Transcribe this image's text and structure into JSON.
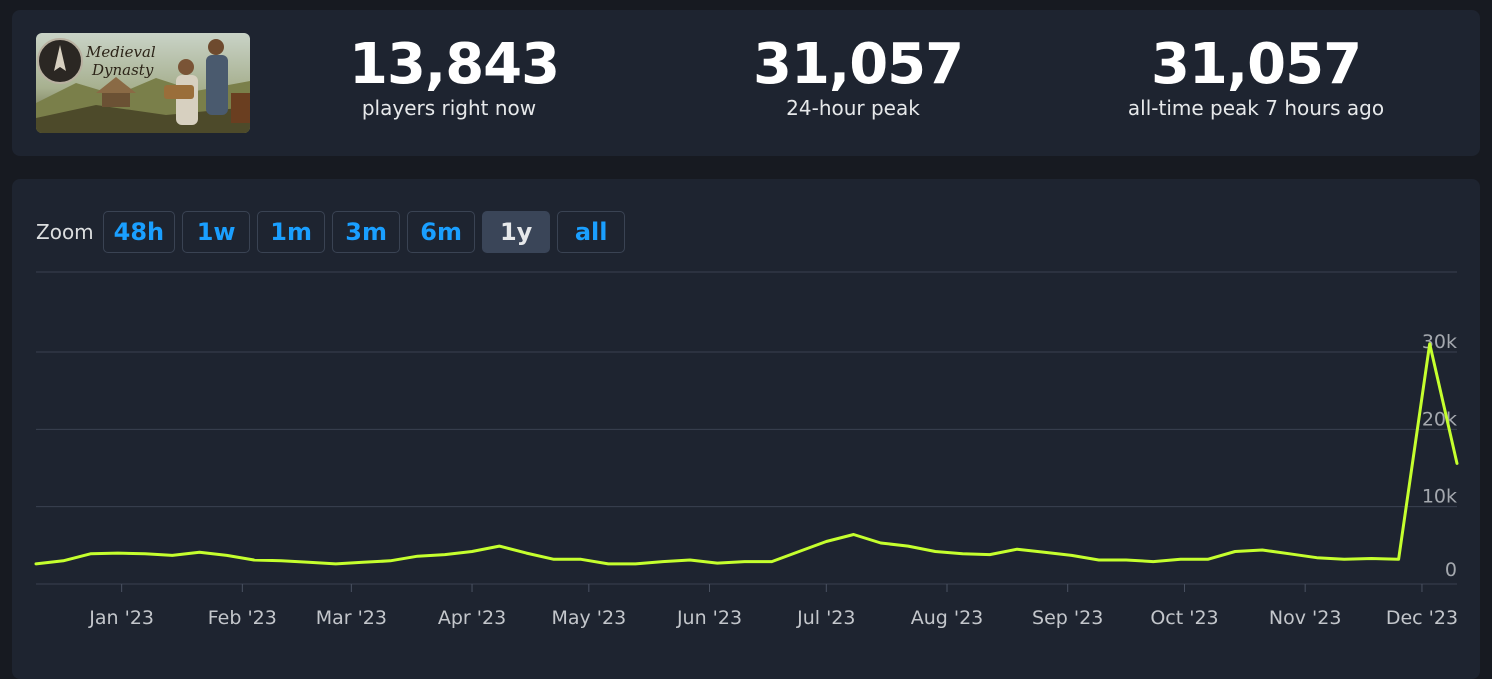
{
  "stats": [
    {
      "value": "13,843",
      "label": "players right now"
    },
    {
      "value": "31,057",
      "label": "24-hour peak"
    },
    {
      "value": "31,057",
      "label": "all-time peak 7 hours ago"
    }
  ],
  "game": {
    "logo_text_1": "Medieval",
    "logo_text_2": "Dynasty"
  },
  "zoom": {
    "label": "Zoom",
    "options": [
      "48h",
      "1w",
      "1m",
      "3m",
      "6m",
      "1y",
      "all"
    ],
    "selected": "1y"
  },
  "colors": {
    "line": "#c5ff2e",
    "accent": "#1a9fff"
  },
  "chart_data": {
    "type": "line",
    "ylim": [
      0,
      30000
    ],
    "y_ticks": [
      0,
      10000,
      20000,
      30000
    ],
    "y_tick_labels": [
      "0",
      "10k",
      "20k",
      "30k"
    ],
    "x_ticks": [
      "Jan '23",
      "Feb '23",
      "Mar '23",
      "Apr '23",
      "May '23",
      "Jun '23",
      "Jul '23",
      "Aug '23",
      "Sep '23",
      "Oct '23",
      "Nov '23",
      "Dec '23"
    ],
    "x_tick_dates": [
      "2023-01-01",
      "2023-02-01",
      "2023-03-01",
      "2023-04-01",
      "2023-05-01",
      "2023-06-01",
      "2023-07-01",
      "2023-08-01",
      "2023-09-01",
      "2023-10-01",
      "2023-11-01",
      "2023-12-01"
    ],
    "x_range": [
      "2022-12-10",
      "2023-12-10"
    ],
    "series": [
      {
        "points": [
          [
            "2022-12-10",
            2600
          ],
          [
            "2022-12-17",
            3000
          ],
          [
            "2022-12-24",
            3900
          ],
          [
            "2022-12-31",
            4000
          ],
          [
            "2023-01-07",
            3900
          ],
          [
            "2023-01-14",
            3700
          ],
          [
            "2023-01-21",
            4100
          ],
          [
            "2023-01-28",
            3700
          ],
          [
            "2023-02-04",
            3100
          ],
          [
            "2023-02-11",
            3000
          ],
          [
            "2023-02-18",
            2800
          ],
          [
            "2023-02-25",
            2600
          ],
          [
            "2023-03-04",
            2800
          ],
          [
            "2023-03-11",
            3000
          ],
          [
            "2023-03-18",
            3600
          ],
          [
            "2023-03-25",
            3800
          ],
          [
            "2023-04-01",
            4200
          ],
          [
            "2023-04-08",
            4900
          ],
          [
            "2023-04-15",
            4000
          ],
          [
            "2023-04-22",
            3200
          ],
          [
            "2023-04-29",
            3200
          ],
          [
            "2023-05-06",
            2600
          ],
          [
            "2023-05-13",
            2600
          ],
          [
            "2023-05-20",
            2900
          ],
          [
            "2023-05-27",
            3100
          ],
          [
            "2023-06-03",
            2700
          ],
          [
            "2023-06-10",
            2900
          ],
          [
            "2023-06-17",
            2900
          ],
          [
            "2023-06-24",
            4200
          ],
          [
            "2023-07-01",
            5500
          ],
          [
            "2023-07-08",
            6400
          ],
          [
            "2023-07-15",
            5300
          ],
          [
            "2023-07-22",
            4900
          ],
          [
            "2023-07-29",
            4200
          ],
          [
            "2023-08-05",
            3900
          ],
          [
            "2023-08-12",
            3800
          ],
          [
            "2023-08-19",
            4500
          ],
          [
            "2023-08-26",
            4100
          ],
          [
            "2023-09-02",
            3700
          ],
          [
            "2023-09-09",
            3100
          ],
          [
            "2023-09-16",
            3100
          ],
          [
            "2023-09-23",
            2900
          ],
          [
            "2023-09-30",
            3200
          ],
          [
            "2023-10-07",
            3200
          ],
          [
            "2023-10-14",
            4200
          ],
          [
            "2023-10-21",
            4400
          ],
          [
            "2023-10-28",
            3900
          ],
          [
            "2023-11-04",
            3400
          ],
          [
            "2023-11-11",
            3200
          ],
          [
            "2023-11-18",
            3300
          ],
          [
            "2023-11-25",
            3200
          ],
          [
            "2023-12-03",
            31057
          ],
          [
            "2023-12-10",
            15600
          ]
        ]
      }
    ]
  }
}
